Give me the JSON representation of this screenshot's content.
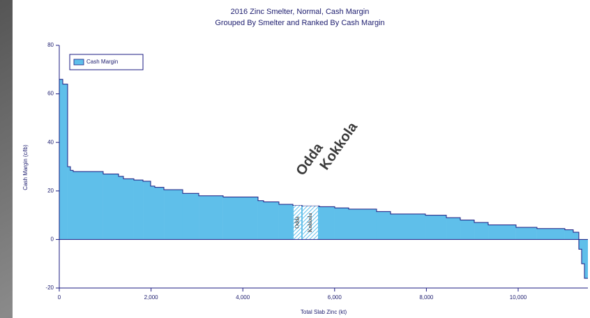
{
  "chart_data": {
    "type": "step-area",
    "title": "2016 Zinc Smelter, Normal, Cash Margin",
    "subtitle": "Grouped By Smelter and Ranked By Cash Margin",
    "x_label": "Total Slab Zinc (kt)",
    "y_label": "Cash Margin (c/lb)",
    "series": [
      {
        "name": "Cash Margin",
        "color": "#5fbfea",
        "bins": [
          0,
          76,
          182,
          243,
          304,
          957,
          1292,
          1398,
          1626,
          1824,
          1991,
          2082,
          2280,
          2690,
          3040,
          3571,
          4331,
          4453,
          4787,
          5091,
          5290,
          5669,
          6003,
          6307,
          6915,
          7219,
          7979,
          8435,
          8739,
          9043,
          9347,
          9954,
          10410,
          11018,
          11201,
          11322,
          11383,
          11444,
          11520
        ],
        "values": [
          66,
          64,
          30,
          28.5,
          28,
          27,
          26,
          25,
          24.5,
          24,
          22,
          21.5,
          20.5,
          19,
          18,
          17.5,
          16,
          15.5,
          14.5,
          14,
          13.8,
          13.5,
          13,
          12.5,
          11.5,
          10.5,
          10,
          9,
          8,
          7,
          6,
          5,
          4.5,
          4,
          3,
          -4,
          -10,
          -16
        ]
      }
    ],
    "highlights": [
      {
        "label": "Odda",
        "x": [
          5106,
          5274
        ]
      },
      {
        "label": "Kokkola",
        "x": [
          5304,
          5638
        ]
      }
    ],
    "xlim": [
      0,
      11520
    ],
    "ylim": [
      -20,
      80
    ],
    "xticks": [
      0,
      {
        "value": 2000,
        "label": "2,000"
      },
      {
        "value": 4000,
        "label": "4,000"
      },
      {
        "value": 6000,
        "label": "6,000"
      },
      {
        "value": 8000,
        "label": "8,000"
      },
      {
        "value": 10000,
        "label": "10,000"
      }
    ],
    "yticks": [
      -20,
      0,
      20,
      40,
      60,
      80
    ],
    "legend": "upper left"
  }
}
